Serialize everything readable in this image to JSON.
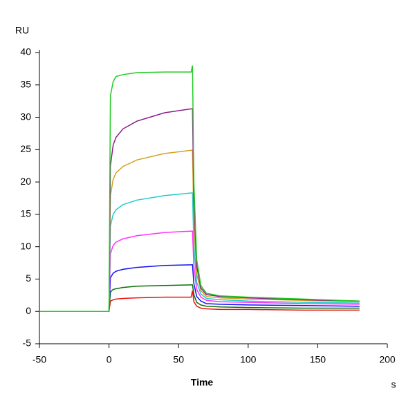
{
  "chart_data": {
    "type": "line",
    "y_label": "RU",
    "x_label": "Time",
    "x_unit": "s",
    "x": [
      -50,
      -20,
      -1,
      0,
      1,
      3,
      5,
      10,
      20,
      40,
      59,
      60,
      61,
      63,
      66,
      70,
      80,
      100,
      140,
      180
    ],
    "series": [
      {
        "color": "#22cc22",
        "values": [
          0,
          0,
          0,
          0,
          33.3,
          35.5,
          36.3,
          36.6,
          36.9,
          37,
          37,
          38,
          20,
          8,
          4,
          2.8,
          2.4,
          2.2,
          1.9,
          1.6
        ]
      },
      {
        "color": "#8b1a8b",
        "values": [
          0,
          0,
          0,
          0,
          22.5,
          25.7,
          26.9,
          28.2,
          29.4,
          30.7,
          31.3,
          31.3,
          17,
          7,
          3.6,
          2.6,
          2.3,
          2.1,
          1.8,
          1.6
        ]
      },
      {
        "color": "#d4a020",
        "values": [
          0,
          0,
          0,
          0,
          17.9,
          20.4,
          21.4,
          22.4,
          23.4,
          24.4,
          24.9,
          24.9,
          13.5,
          5.8,
          3.2,
          2.3,
          2.1,
          1.9,
          1.7,
          1.5
        ]
      },
      {
        "color": "#20cccc",
        "values": [
          0,
          0,
          0,
          0,
          13.2,
          15.0,
          15.7,
          16.5,
          17.2,
          17.9,
          18.3,
          18.3,
          10,
          4.5,
          2.7,
          2.0,
          1.8,
          1.6,
          1.4,
          1.3
        ]
      },
      {
        "color": "#ff30ff",
        "values": [
          0,
          0,
          0,
          0,
          8.9,
          10.2,
          10.7,
          11.2,
          11.7,
          12.2,
          12.4,
          12.4,
          7,
          3.4,
          2.2,
          1.7,
          1.5,
          1.4,
          1.2,
          1.1
        ]
      },
      {
        "color": "#1010ee",
        "values": [
          0,
          0,
          0,
          0,
          5.2,
          5.9,
          6.2,
          6.5,
          6.8,
          7.1,
          7.2,
          7.2,
          4.3,
          2.3,
          1.6,
          1.2,
          1.1,
          1.0,
          0.9,
          0.8
        ]
      },
      {
        "color": "#0a6e0a",
        "values": [
          0,
          0,
          0,
          0,
          3.0,
          3.4,
          3.5,
          3.7,
          3.9,
          4.0,
          4.1,
          4.1,
          2.6,
          1.4,
          1.0,
          0.8,
          0.7,
          0.6,
          0.5,
          0.5
        ]
      },
      {
        "color": "#ee1010",
        "values": [
          0,
          0,
          0,
          0,
          1.6,
          1.8,
          1.9,
          2.0,
          2.1,
          2.2,
          2.2,
          3.2,
          1.5,
          0.8,
          0.5,
          0.4,
          0.3,
          0.3,
          0.2,
          0.2
        ]
      }
    ],
    "xlim": [
      -50,
      200
    ],
    "xticks": [
      -50,
      0,
      50,
      100,
      150,
      200
    ],
    "ylim": [
      -5,
      40
    ],
    "yticks": [
      -5,
      0,
      5,
      10,
      15,
      20,
      25,
      30,
      35,
      40
    ]
  }
}
